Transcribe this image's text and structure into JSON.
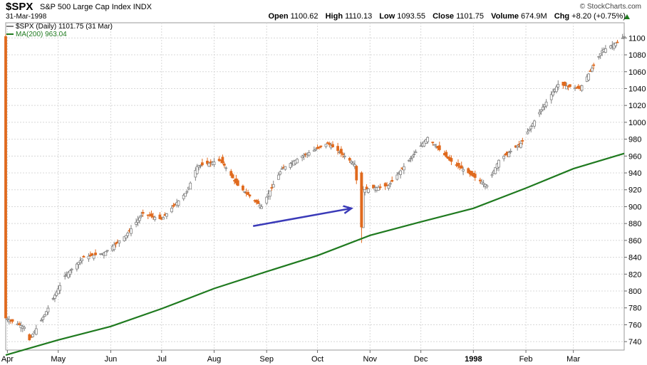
{
  "header": {
    "symbol": "$SPX",
    "name": "S&P 500 Large Cap Index",
    "exchange": "INDX",
    "date": "31-Mar-1998",
    "brand": "© StockCharts.com",
    "open_label": "Open",
    "open": "1100.62",
    "high_label": "High",
    "high": "1110.13",
    "low_label": "Low",
    "low": "1093.55",
    "close_label": "Close",
    "close": "1101.75",
    "volume_label": "Volume",
    "volume": "674.9M",
    "chg_label": "Chg",
    "chg": "+8.20 (+0.75%)"
  },
  "legend": {
    "price": "$SPX (Daily) 1101.75 (31 Mar)",
    "ma": "MA(200) 963.04"
  },
  "colors": {
    "up": "#808080",
    "down": "#e06a1e",
    "ma": "#1f7a1f",
    "arrow": "#3a3ab8",
    "grid": "#d8d8d8",
    "axis": "#000000"
  },
  "chart_data": {
    "type": "line",
    "title": "$SPX S&P 500 Large Cap Index INDX",
    "ylim": [
      730,
      1118
    ],
    "yticks": [
      740,
      760,
      780,
      800,
      820,
      840,
      860,
      880,
      900,
      920,
      940,
      960,
      980,
      1000,
      1020,
      1040,
      1060,
      1080,
      1100
    ],
    "xticks": [
      {
        "label": "Apr",
        "date": "1997-04-01"
      },
      {
        "label": "May",
        "date": "1997-05-01"
      },
      {
        "label": "Jun",
        "date": "1997-06-01"
      },
      {
        "label": "Jul",
        "date": "1997-07-01"
      },
      {
        "label": "Aug",
        "date": "1997-08-01"
      },
      {
        "label": "Sep",
        "date": "1997-09-01"
      },
      {
        "label": "Oct",
        "date": "1997-10-01"
      },
      {
        "label": "Nov",
        "date": "1997-11-01"
      },
      {
        "label": "Dec",
        "date": "1997-12-01"
      },
      {
        "label": "1998",
        "date": "1998-01-01"
      },
      {
        "label": "Feb",
        "date": "1998-02-01"
      },
      {
        "label": "Mar",
        "date": "1998-03-01"
      }
    ],
    "x_range": [
      "1997-03-31",
      "1998-03-31"
    ],
    "series": [
      {
        "name": "$SPX (Daily)",
        "style": "ohlc-candles",
        "x": [
          "1997-03-31",
          "1997-04-11",
          "1997-04-14",
          "1997-04-23",
          "1997-05-05",
          "1997-05-16",
          "1997-05-28",
          "1997-06-10",
          "1997-06-20",
          "1997-07-01",
          "1997-07-16",
          "1997-07-22",
          "1997-08-05",
          "1997-08-15",
          "1997-08-29",
          "1997-09-10",
          "1997-09-22",
          "1997-10-07",
          "1997-10-14",
          "1997-10-23",
          "1997-10-27",
          "1997-10-28",
          "1997-11-12",
          "1997-11-24",
          "1997-12-05",
          "1997-12-18",
          "1998-01-09",
          "1998-01-16",
          "1998-01-29",
          "1998-02-10",
          "1998-02-20",
          "1998-03-05",
          "1998-03-18",
          "1998-03-27",
          "1998-03-31"
        ],
        "close": [
          768,
          757,
          742,
          772,
          818,
          840,
          845,
          866,
          892,
          885,
          918,
          948,
          955,
          925,
          900,
          945,
          960,
          975,
          965,
          950,
          876,
          920,
          925,
          955,
          982,
          955,
          925,
          955,
          975,
          1015,
          1045,
          1040,
          1085,
          1095,
          1101.75
        ]
      },
      {
        "name": "MA(200)",
        "style": "line",
        "x": [
          "1997-03-31",
          "1997-05-01",
          "1997-06-01",
          "1997-07-01",
          "1997-08-01",
          "1997-09-01",
          "1997-10-01",
          "1997-11-01",
          "1997-12-01",
          "1998-01-01",
          "1998-02-01",
          "1998-03-01",
          "1998-03-31"
        ],
        "values": [
          724,
          742,
          758,
          779,
          803,
          823,
          842,
          866,
          882,
          898,
          922,
          945,
          963.04
        ]
      }
    ],
    "annotations": [
      {
        "type": "arrow",
        "from": {
          "date": "1997-08-24",
          "value": 877
        },
        "to": {
          "date": "1997-10-21",
          "value": 898
        }
      }
    ],
    "grid": true,
    "legend_position": "top-left"
  }
}
